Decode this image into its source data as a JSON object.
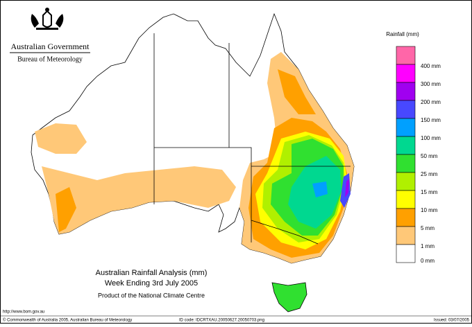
{
  "header": {
    "agency": "Australian Government",
    "bureau": "Bureau of Meteorology"
  },
  "legend": {
    "title": "Rainfall (mm)",
    "colors": [
      "#ff66a8",
      "#ff00ff",
      "#a000f0",
      "#4848ff",
      "#00a0ff",
      "#00d890",
      "#30e030",
      "#b0f000",
      "#ffff00",
      "#ffa000",
      "#ffc878",
      "#ffffff"
    ],
    "labels": [
      "400 mm",
      "300 mm",
      "200 mm",
      "150 mm",
      "100 mm",
      "50 mm",
      "25 mm",
      "15 mm",
      "10 mm",
      "5 mm",
      "1 mm",
      "0 mm"
    ]
  },
  "map": {
    "title": "Australian Rainfall Analysis (mm)",
    "subtitle": "Week Ending 3rd July 2005",
    "credit": "Product of the National Climate Centre"
  },
  "footer": {
    "url": "http://www.bom.gov.au",
    "copyright": "© Commonwealth of Australia 2005, Australian Bureau of Meteorology",
    "id_code": "ID code: IDCRTXAU.20050627.20050703.png",
    "issued": "Issued: 03/07/2005"
  }
}
